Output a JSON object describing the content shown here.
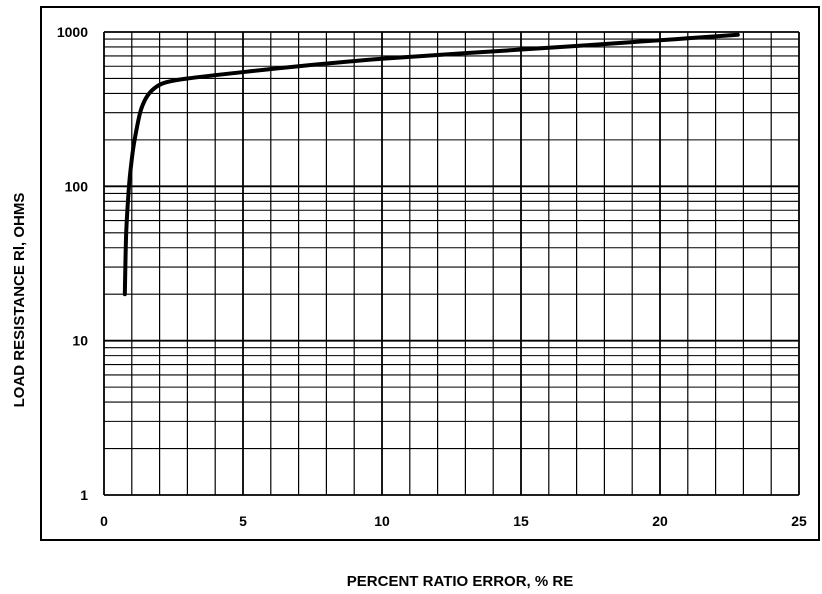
{
  "chart_data": {
    "type": "line",
    "title": "",
    "xlabel": "PERCENT RATIO ERROR, % RE",
    "ylabel": "LOAD RESISTANCE Rl, OHMS",
    "xlim": [
      0,
      25
    ],
    "ylim": [
      1,
      1000
    ],
    "y_scale": "log",
    "grid": true,
    "x_ticks": [
      0,
      5,
      10,
      15,
      20,
      25
    ],
    "x_tick_labels": [
      "0",
      "5",
      "10",
      "15",
      "20",
      "25"
    ],
    "y_ticks": [
      1,
      10,
      100,
      1000
    ],
    "y_tick_labels": [
      "1",
      "10",
      "100",
      "1000"
    ],
    "series": [
      {
        "color": "#000000",
        "x": [
          0.75,
          0.8,
          0.9,
          1.0,
          1.1,
          1.3,
          1.5,
          1.8,
          2.2,
          3.0,
          5.0,
          7.0,
          10.0,
          13.0,
          16.0,
          19.0,
          21.0,
          22.8
        ],
        "y": [
          20,
          50,
          100,
          150,
          200,
          300,
          370,
          430,
          470,
          500,
          550,
          600,
          670,
          730,
          790,
          860,
          910,
          960
        ]
      }
    ]
  }
}
